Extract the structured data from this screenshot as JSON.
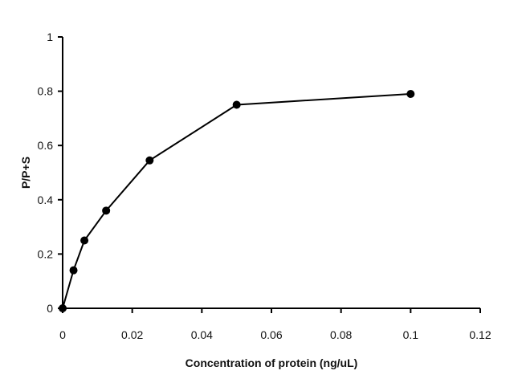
{
  "chart_data": {
    "type": "line",
    "title": "",
    "xlabel": "Concentration of protein (ng/uL)",
    "ylabel": "P/P+S",
    "xlim": [
      0,
      0.12
    ],
    "ylim": [
      0,
      1
    ],
    "x_ticks": [
      0,
      0.02,
      0.04,
      0.06,
      0.08,
      0.1,
      0.12
    ],
    "x_tick_labels": [
      "0",
      "0.02",
      "0.04",
      "0.06",
      "0.08",
      "0.1",
      "0.12"
    ],
    "y_ticks": [
      0,
      0.2,
      0.4,
      0.6,
      0.8,
      1
    ],
    "y_tick_labels": [
      "0",
      "0.2",
      "0.4",
      "0.6",
      "0.8",
      "1"
    ],
    "grid": false,
    "legend": "none",
    "series": [
      {
        "x": [
          0,
          0.003125,
          0.00625,
          0.0125,
          0.025,
          0.05,
          0.1
        ],
        "y": [
          0,
          0.14,
          0.25,
          0.36,
          0.545,
          0.75,
          0.79
        ]
      }
    ],
    "colors": {
      "line": "#000000",
      "marker": "#000000"
    }
  }
}
